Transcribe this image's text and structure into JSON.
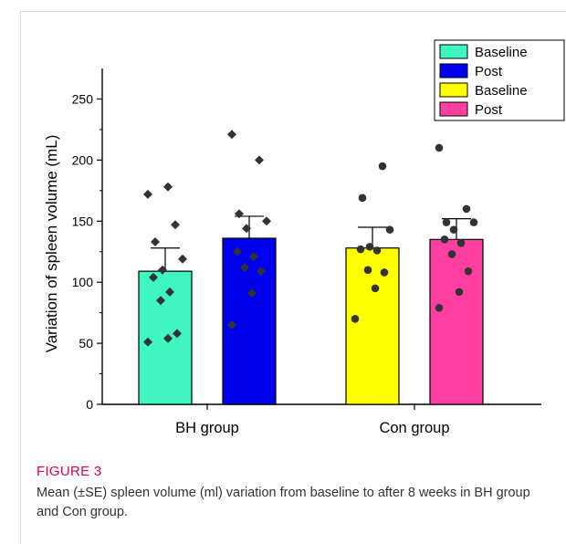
{
  "chart_data": {
    "type": "bar",
    "title": "",
    "xlabel": "",
    "ylabel": "Variation of spleen volume (mL)",
    "ylim": [
      0,
      275
    ],
    "yticks": [
      0,
      50,
      100,
      150,
      200,
      250
    ],
    "grid": false,
    "legend_position": "top-right",
    "groups": [
      "BH group",
      "Con group"
    ],
    "series": [
      {
        "name": "Baseline",
        "group": "BH group",
        "color": "#3ff5c0",
        "mean": 109,
        "se": 19,
        "marker": "diamond",
        "points": [
          51,
          54,
          58,
          85,
          92,
          104,
          110,
          119,
          133,
          147,
          172,
          178
        ]
      },
      {
        "name": "Post",
        "group": "BH group",
        "color": "#0000ee",
        "mean": 136,
        "se": 18,
        "marker": "diamond",
        "points": [
          65,
          91,
          109,
          112,
          121,
          125,
          144,
          150,
          156,
          200,
          221
        ]
      },
      {
        "name": "Baseline",
        "group": "Con group",
        "color": "#ffff00",
        "mean": 128,
        "se": 17,
        "marker": "circle",
        "points": [
          70,
          95,
          108,
          110,
          126,
          127,
          129,
          143,
          169,
          195
        ]
      },
      {
        "name": "Post",
        "group": "Con group",
        "color": "#ff3fa0",
        "mean": 135,
        "se": 17,
        "marker": "circle",
        "points": [
          79,
          92,
          109,
          123,
          132,
          135,
          143,
          149,
          149,
          160,
          210
        ]
      }
    ]
  },
  "figure": {
    "label": "FIGURE 3",
    "caption": "Mean (±SE) spleen volume (ml) variation from baseline to after 8 weeks in BH group and Con group."
  }
}
